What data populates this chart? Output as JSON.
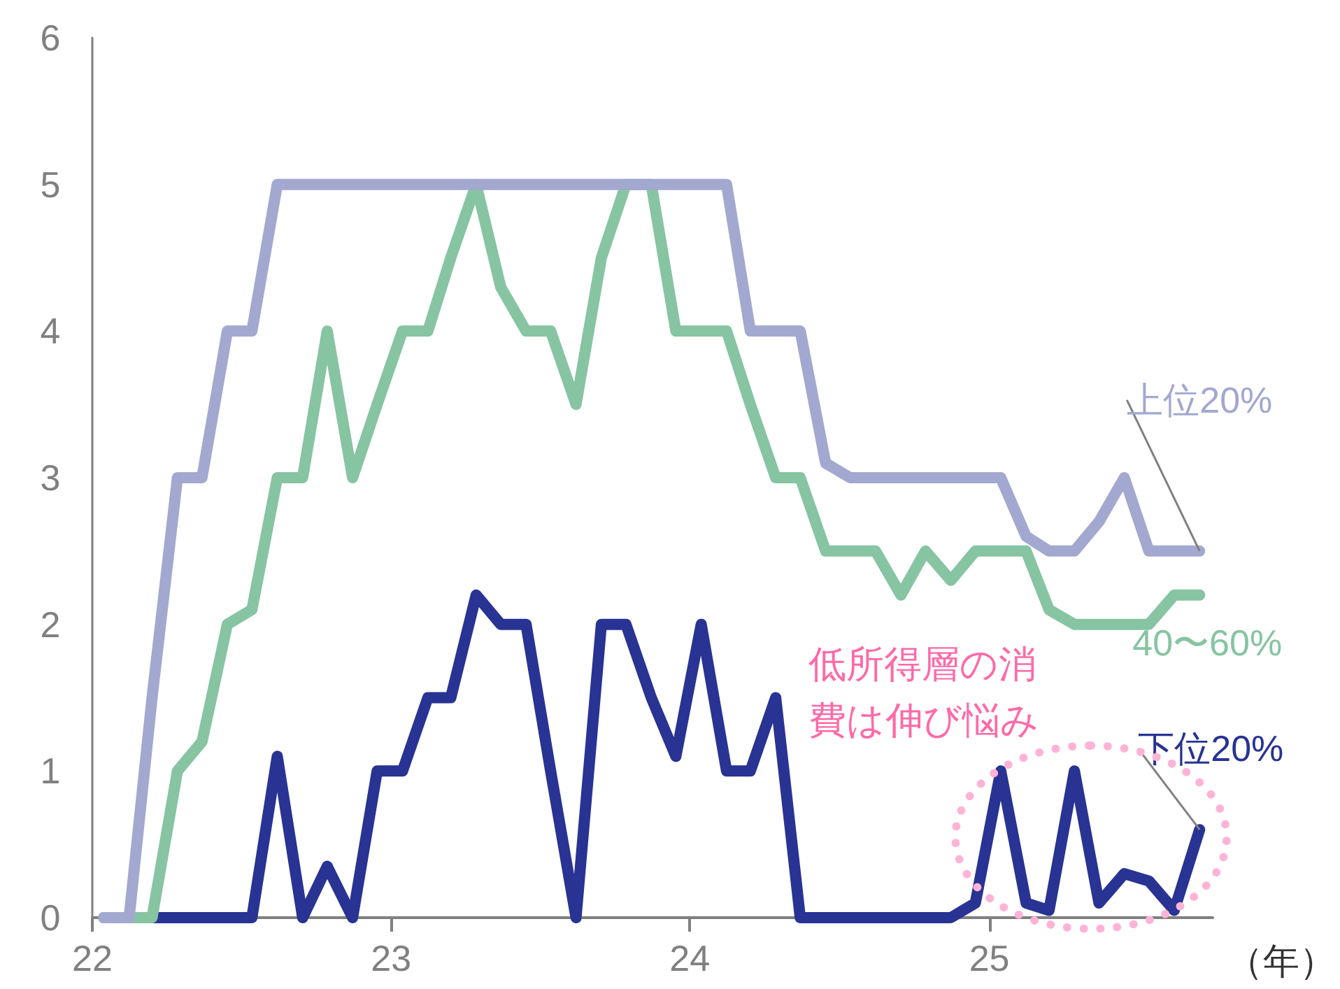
{
  "chart_data": {
    "type": "line",
    "xlabel": "（年）",
    "marker": "none",
    "line_style": "solid",
    "grid": false,
    "x": [
      "2022-01-15",
      "2022-02-15",
      "2022-03-15",
      "2022-04-15",
      "2022-05-15",
      "2022-06-15",
      "2022-07-15",
      "2022-08-15",
      "2022-09-15",
      "2022-10-15",
      "2022-11-15",
      "2022-12-15",
      "2023-01-15",
      "2023-02-15",
      "2023-03-15",
      "2023-04-15",
      "2023-05-15",
      "2023-06-15",
      "2023-07-15",
      "2023-08-15",
      "2023-09-15",
      "2023-10-15",
      "2023-11-15",
      "2023-12-15",
      "2024-01-15",
      "2024-02-15",
      "2024-03-15",
      "2024-04-15",
      "2024-05-15",
      "2024-06-15",
      "2024-07-15",
      "2024-08-15",
      "2024-09-15",
      "2024-10-15",
      "2024-11-15",
      "2024-12-15",
      "2025-01-15",
      "2025-02-15",
      "2025-03-15",
      "2025-04-15",
      "2025-05-15",
      "2025-06-15",
      "2025-07-15",
      "2025-08-15",
      "2025-09-15"
    ],
    "xlim": [
      "2022-01-01",
      "2025-10-01"
    ],
    "xticks": [
      {
        "value": "2022-01-01",
        "label": "22"
      },
      {
        "value": "2023-01-01",
        "label": "23"
      },
      {
        "value": "2024-01-01",
        "label": "24"
      },
      {
        "value": "2025-01-01",
        "label": "25"
      }
    ],
    "ylim": [
      0,
      6
    ],
    "yticks": [
      0,
      1,
      2,
      3,
      4,
      5,
      6
    ],
    "series": [
      {
        "name": "上位20%",
        "color": "#a3a8d0",
        "values": [
          0,
          0,
          1.5,
          3,
          3,
          4,
          4,
          5,
          5,
          5,
          5,
          5,
          5,
          5,
          5,
          5,
          5,
          5,
          5,
          5,
          5,
          5,
          5,
          5,
          5,
          5,
          4,
          4,
          4,
          3.1,
          3,
          3,
          3,
          3,
          3,
          3,
          3,
          2.6,
          2.5,
          2.5,
          2.7,
          3,
          2.5,
          2.5,
          2.5
        ]
      },
      {
        "name": "40〜60%",
        "color": "#86c4a2",
        "values": [
          0,
          0,
          0,
          1,
          1.2,
          2,
          2.1,
          3,
          3,
          4,
          3,
          3.5,
          4,
          4,
          4.5,
          5,
          4.3,
          4,
          4,
          3.5,
          4.5,
          5,
          5,
          4,
          4,
          4,
          3.5,
          3,
          3,
          2.5,
          2.5,
          2.5,
          2.2,
          2.5,
          2.3,
          2.5,
          2.5,
          2.5,
          2.1,
          2,
          2,
          2,
          2,
          2.2,
          2.2
        ]
      },
      {
        "name": "下位20%",
        "color": "#283393",
        "values": [
          0,
          0,
          0,
          0,
          0,
          0,
          0,
          1.1,
          0,
          0.35,
          0,
          1,
          1,
          1.5,
          1.5,
          2.2,
          2,
          2,
          1,
          0,
          2,
          2,
          1.5,
          1.1,
          2,
          1,
          1,
          1.5,
          0,
          0,
          0,
          0,
          0,
          0,
          0,
          0.1,
          1,
          0.1,
          0.05,
          1,
          0.1,
          0.3,
          0.25,
          0.05,
          0.6
        ]
      }
    ],
    "annotations": [
      "低所得層の消費は伸び悩み"
    ]
  }
}
